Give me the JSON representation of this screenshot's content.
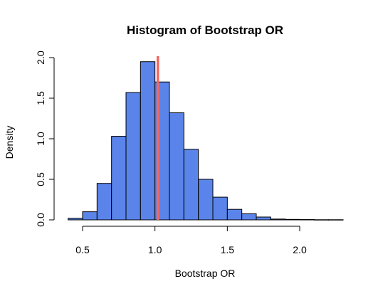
{
  "chart_data": {
    "type": "bar",
    "title": "Histogram of Bootstrap OR",
    "xlabel": "Bootstrap OR",
    "ylabel": "Density",
    "bin_width": 0.1,
    "bins": [
      {
        "x0": 0.4,
        "x1": 0.5,
        "density": 0.02
      },
      {
        "x0": 0.5,
        "x1": 0.6,
        "density": 0.1
      },
      {
        "x0": 0.6,
        "x1": 0.7,
        "density": 0.45
      },
      {
        "x0": 0.7,
        "x1": 0.8,
        "density": 1.03
      },
      {
        "x0": 0.8,
        "x1": 0.9,
        "density": 1.57
      },
      {
        "x0": 0.9,
        "x1": 1.0,
        "density": 1.95
      },
      {
        "x0": 1.0,
        "x1": 1.1,
        "density": 1.7
      },
      {
        "x0": 1.1,
        "x1": 1.2,
        "density": 1.32
      },
      {
        "x0": 1.2,
        "x1": 1.3,
        "density": 0.87
      },
      {
        "x0": 1.3,
        "x1": 1.4,
        "density": 0.5
      },
      {
        "x0": 1.4,
        "x1": 1.5,
        "density": 0.28
      },
      {
        "x0": 1.5,
        "x1": 1.6,
        "density": 0.13
      },
      {
        "x0": 1.6,
        "x1": 1.7,
        "density": 0.075
      },
      {
        "x0": 1.7,
        "x1": 1.8,
        "density": 0.035
      },
      {
        "x0": 1.8,
        "x1": 1.9,
        "density": 0.01
      },
      {
        "x0": 1.9,
        "x1": 2.0,
        "density": 0.006
      },
      {
        "x0": 2.0,
        "x1": 2.1,
        "density": 0.004
      },
      {
        "x0": 2.1,
        "x1": 2.2,
        "density": 0.002
      },
      {
        "x0": 2.2,
        "x1": 2.3,
        "density": 0.002
      }
    ],
    "reference_line_x": 1.02,
    "xlim": [
      0.4,
      2.3
    ],
    "ylim": [
      0,
      2.0
    ],
    "x_ticks": [
      0.5,
      1.0,
      1.5,
      2.0
    ],
    "x_tick_labels": [
      "0.5",
      "1.0",
      "1.5",
      "2.0"
    ],
    "y_ticks": [
      0.0,
      0.5,
      1.0,
      1.5,
      2.0
    ],
    "y_tick_labels": [
      "0.0",
      "0.5",
      "1.0",
      "1.5",
      "2.0"
    ],
    "grid": false,
    "legend": "none",
    "colors": {
      "bar_fill": "#5a84ea",
      "bar_stroke": "#000000",
      "reference_line": "#f4665c",
      "axis": "#000000"
    }
  }
}
